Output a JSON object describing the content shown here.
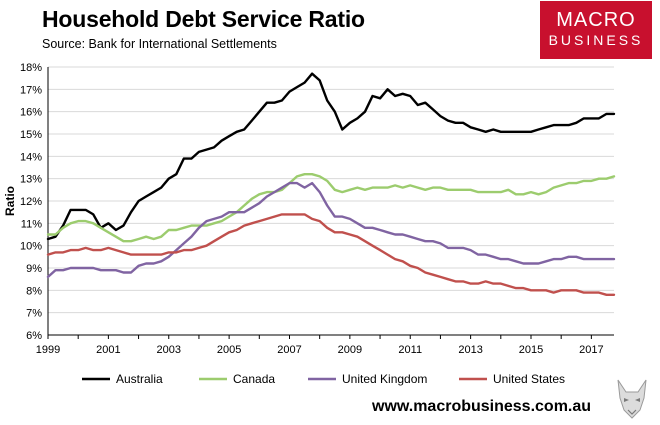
{
  "header": {
    "title": "Household Debt Service Ratio",
    "subtitle": "Source: Bank for International Settlements"
  },
  "logo": {
    "line1": "MACRO",
    "line2": "BUSINESS"
  },
  "footer": {
    "website": "www.macrobusiness.com.au"
  },
  "colors": {
    "logo_bg": "#c8102e"
  },
  "chart_data": {
    "type": "line",
    "title": "Household Debt Service Ratio",
    "ylabel": "Ratio",
    "xlabel": "",
    "xlim": [
      1999,
      2017.75
    ],
    "ylim": [
      6,
      18
    ],
    "grid": true,
    "legend_position": "bottom",
    "x_ticks": [
      "1999",
      "2001",
      "2003",
      "2005",
      "2007",
      "2009",
      "2011",
      "2013",
      "2015",
      "2017"
    ],
    "y_ticks": [
      "6%",
      "7%",
      "8%",
      "9%",
      "10%",
      "11%",
      "12%",
      "13%",
      "14%",
      "15%",
      "16%",
      "17%",
      "18%"
    ],
    "x": [
      1999.0,
      1999.25,
      1999.5,
      1999.75,
      2000.0,
      2000.25,
      2000.5,
      2000.75,
      2001.0,
      2001.25,
      2001.5,
      2001.75,
      2002.0,
      2002.25,
      2002.5,
      2002.75,
      2003.0,
      2003.25,
      2003.5,
      2003.75,
      2004.0,
      2004.25,
      2004.5,
      2004.75,
      2005.0,
      2005.25,
      2005.5,
      2005.75,
      2006.0,
      2006.25,
      2006.5,
      2006.75,
      2007.0,
      2007.25,
      2007.5,
      2007.75,
      2008.0,
      2008.25,
      2008.5,
      2008.75,
      2009.0,
      2009.25,
      2009.5,
      2009.75,
      2010.0,
      2010.25,
      2010.5,
      2010.75,
      2011.0,
      2011.25,
      2011.5,
      2011.75,
      2012.0,
      2012.25,
      2012.5,
      2012.75,
      2013.0,
      2013.25,
      2013.5,
      2013.75,
      2014.0,
      2014.25,
      2014.5,
      2014.75,
      2015.0,
      2015.25,
      2015.5,
      2015.75,
      2016.0,
      2016.25,
      2016.5,
      2016.75,
      2017.0,
      2017.25,
      2017.5,
      2017.75
    ],
    "series": [
      {
        "name": "Australia",
        "color": "#000000",
        "values": [
          10.3,
          10.4,
          10.9,
          11.6,
          11.6,
          11.6,
          11.4,
          10.8,
          11.0,
          10.7,
          10.9,
          11.5,
          12.0,
          12.2,
          12.4,
          12.6,
          13.0,
          13.2,
          13.9,
          13.9,
          14.2,
          14.3,
          14.4,
          14.7,
          14.9,
          15.1,
          15.2,
          15.6,
          16.0,
          16.4,
          16.4,
          16.5,
          16.9,
          17.1,
          17.3,
          17.7,
          17.4,
          16.5,
          16.0,
          15.2,
          15.5,
          15.7,
          16.0,
          16.7,
          16.6,
          17.0,
          16.7,
          16.8,
          16.7,
          16.3,
          16.4,
          16.1,
          15.8,
          15.6,
          15.5,
          15.5,
          15.3,
          15.2,
          15.1,
          15.2,
          15.1,
          15.1,
          15.1,
          15.1,
          15.1,
          15.2,
          15.3,
          15.4,
          15.4,
          15.4,
          15.5,
          15.7,
          15.7,
          15.7,
          15.9,
          15.9
        ]
      },
      {
        "name": "Canada",
        "color": "#9ccc6e",
        "values": [
          10.5,
          10.5,
          10.8,
          11.0,
          11.1,
          11.1,
          11.0,
          10.8,
          10.6,
          10.4,
          10.2,
          10.2,
          10.3,
          10.4,
          10.3,
          10.4,
          10.7,
          10.7,
          10.8,
          10.9,
          10.9,
          10.9,
          11.0,
          11.1,
          11.3,
          11.5,
          11.8,
          12.1,
          12.3,
          12.4,
          12.4,
          12.5,
          12.8,
          13.1,
          13.2,
          13.2,
          13.1,
          12.9,
          12.5,
          12.4,
          12.5,
          12.6,
          12.5,
          12.6,
          12.6,
          12.6,
          12.7,
          12.6,
          12.7,
          12.6,
          12.5,
          12.6,
          12.6,
          12.5,
          12.5,
          12.5,
          12.5,
          12.4,
          12.4,
          12.4,
          12.4,
          12.5,
          12.3,
          12.3,
          12.4,
          12.3,
          12.4,
          12.6,
          12.7,
          12.8,
          12.8,
          12.9,
          12.9,
          13.0,
          13.0,
          13.1
        ]
      },
      {
        "name": "United Kingdom",
        "color": "#8064a2",
        "values": [
          8.6,
          8.9,
          8.9,
          9.0,
          9.0,
          9.0,
          9.0,
          8.9,
          8.9,
          8.9,
          8.8,
          8.8,
          9.1,
          9.2,
          9.2,
          9.3,
          9.5,
          9.8,
          10.1,
          10.4,
          10.8,
          11.1,
          11.2,
          11.3,
          11.5,
          11.5,
          11.5,
          11.7,
          11.9,
          12.2,
          12.4,
          12.6,
          12.8,
          12.8,
          12.6,
          12.8,
          12.4,
          11.8,
          11.3,
          11.3,
          11.2,
          11.0,
          10.8,
          10.8,
          10.7,
          10.6,
          10.5,
          10.5,
          10.4,
          10.3,
          10.2,
          10.2,
          10.1,
          9.9,
          9.9,
          9.9,
          9.8,
          9.6,
          9.6,
          9.5,
          9.4,
          9.4,
          9.3,
          9.2,
          9.2,
          9.2,
          9.3,
          9.4,
          9.4,
          9.5,
          9.5,
          9.4,
          9.4,
          9.4,
          9.4,
          9.4
        ]
      },
      {
        "name": "United States",
        "color": "#c0504d",
        "values": [
          9.6,
          9.7,
          9.7,
          9.8,
          9.8,
          9.9,
          9.8,
          9.8,
          9.9,
          9.8,
          9.7,
          9.6,
          9.6,
          9.6,
          9.6,
          9.6,
          9.7,
          9.7,
          9.8,
          9.8,
          9.9,
          10.0,
          10.2,
          10.4,
          10.6,
          10.7,
          10.9,
          11.0,
          11.1,
          11.2,
          11.3,
          11.4,
          11.4,
          11.4,
          11.4,
          11.2,
          11.1,
          10.8,
          10.6,
          10.6,
          10.5,
          10.4,
          10.2,
          10.0,
          9.8,
          9.6,
          9.4,
          9.3,
          9.1,
          9.0,
          8.8,
          8.7,
          8.6,
          8.5,
          8.4,
          8.4,
          8.3,
          8.3,
          8.4,
          8.3,
          8.3,
          8.2,
          8.1,
          8.1,
          8.0,
          8.0,
          8.0,
          7.9,
          8.0,
          8.0,
          8.0,
          7.9,
          7.9,
          7.9,
          7.8,
          7.8
        ]
      }
    ]
  }
}
